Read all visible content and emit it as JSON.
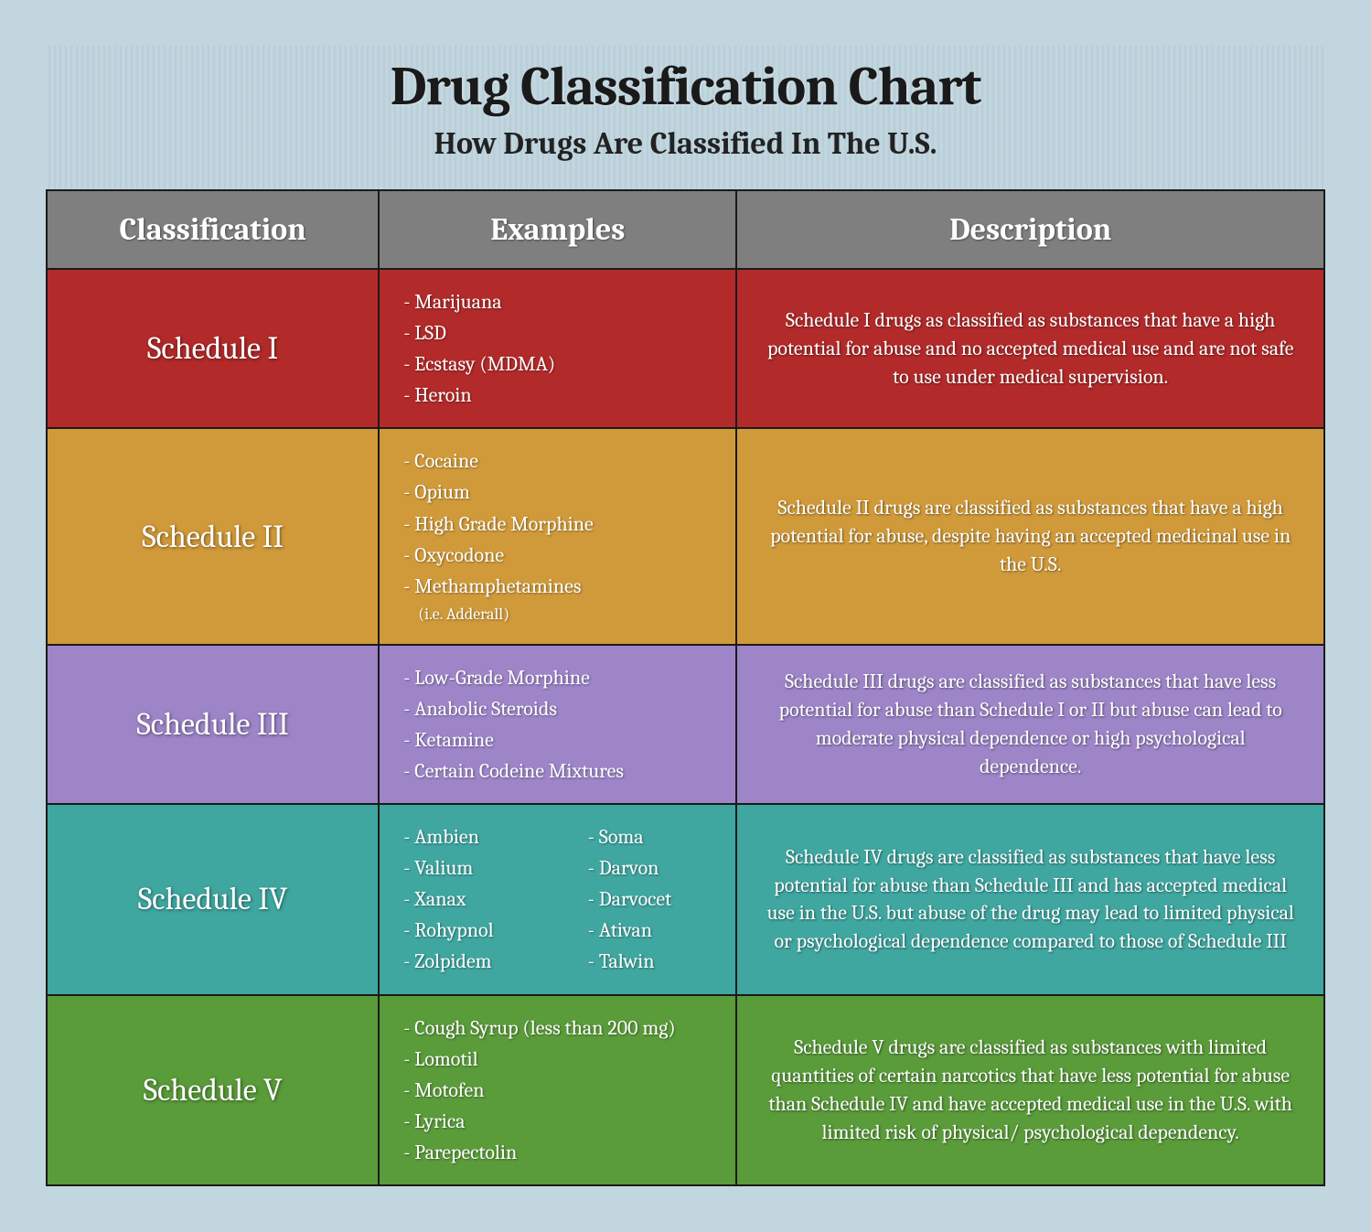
{
  "title": "Drug Classification Chart",
  "subtitle": "How Drugs Are Classified In The U.S.",
  "columns": [
    "Classification",
    "Examples",
    "Description"
  ],
  "header_bg": "#7f7f7f",
  "header_text_color": "#ffffff",
  "border_color": "#1a1a1a",
  "page_bg": "#c2d6df",
  "title_fontsize": 60,
  "subtitle_fontsize": 34,
  "header_fontsize": 34,
  "cell_fontsize": 22,
  "classification_fontsize": 34,
  "rows": [
    {
      "classification": "Schedule I",
      "bg_color": "#b22a2a",
      "examples": [
        "Marijuana",
        "LSD",
        "Ecstasy (MDMA)",
        "Heroin"
      ],
      "examples_two_col": false,
      "sub_note": "",
      "description": "Schedule I drugs as classified as substances that have a high potential for abuse and no accepted medical use and are not safe to use under medical supervision."
    },
    {
      "classification": "Schedule II",
      "bg_color": "#d09a3a",
      "examples": [
        "Cocaine",
        "Opium",
        "High Grade Morphine",
        "Oxycodone",
        "Methamphetamines"
      ],
      "examples_two_col": false,
      "sub_note": "(i.e. Adderall)",
      "description": "Schedule II drugs are classified as substances that have a high potential for abuse, despite having an accepted medicinal use in the U.S."
    },
    {
      "classification": "Schedule III",
      "bg_color": "#9d85c8",
      "examples": [
        "Low-Grade Morphine",
        "Anabolic Steroids",
        "Ketamine",
        "Certain Codeine Mixtures"
      ],
      "examples_two_col": false,
      "sub_note": "",
      "description": "Schedule III drugs are classified as substances that have less potential for abuse than Schedule I or II but abuse can lead to moderate physical dependence or high psychological dependence."
    },
    {
      "classification": "Schedule IV",
      "bg_color": "#3fa6a0",
      "examples": [
        "Ambien",
        "Valium",
        "Xanax",
        "Rohypnol",
        "Zolpidem"
      ],
      "examples_col2": [
        "Soma",
        "Darvon",
        "Darvocet",
        "Ativan",
        "Talwin"
      ],
      "examples_two_col": true,
      "sub_note": "",
      "description": "Schedule IV drugs are classified as substances that have less potential for abuse than Schedule III and has accepted medical use in the U.S. but abuse of the drug may lead to limited physical or psychological dependence compared to those of Schedule III"
    },
    {
      "classification": "Schedule V",
      "bg_color": "#5a9b3a",
      "examples": [
        "Cough Syrup (less than 200 mg)",
        "Lomotil",
        "Motofen",
        "Lyrica",
        "Parepectolin"
      ],
      "examples_two_col": false,
      "sub_note": "",
      "description": "Schedule V drugs are classified as substances with limited quantities of certain narcotics  that have less potential for abuse than Schedule IV and have accepted medical use in the U.S. with limited risk of physical/ psychological dependency."
    }
  ]
}
